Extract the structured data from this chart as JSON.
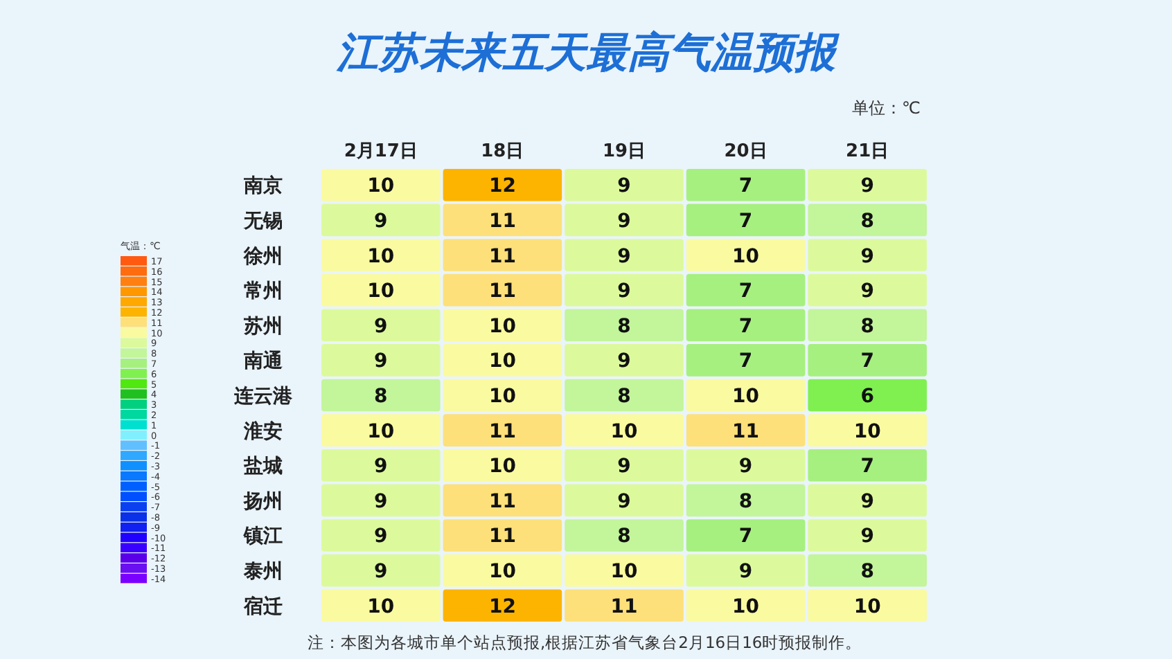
{
  "chart_data": {
    "type": "heatmap",
    "title": "江苏未来五天最高气温预报",
    "subtitle": "单位：℃",
    "clabel": "气温：℃",
    "annotations": [
      "注：本图为各城市单个站点预报,根据江苏省气象台2月16日16时预报制作。"
    ],
    "categories": [
      "2月17日",
      "18日",
      "19日",
      "20日",
      "21日"
    ],
    "y_categories": [
      "南京",
      "无锡",
      "徐州",
      "常州",
      "苏州",
      "南通",
      "连云港",
      "淮安",
      "盐城",
      "扬州",
      "镇江",
      "泰州",
      "宿迁"
    ],
    "cells": [
      [
        10,
        12,
        9,
        7,
        9
      ],
      [
        9,
        11,
        9,
        7,
        8
      ],
      [
        10,
        11,
        9,
        10,
        9
      ],
      [
        10,
        11,
        9,
        7,
        9
      ],
      [
        9,
        10,
        8,
        7,
        8
      ],
      [
        9,
        10,
        9,
        7,
        7
      ],
      [
        8,
        10,
        8,
        10,
        6
      ],
      [
        10,
        11,
        10,
        11,
        10
      ],
      [
        9,
        10,
        9,
        9,
        7
      ],
      [
        9,
        11,
        9,
        8,
        9
      ],
      [
        9,
        11,
        8,
        7,
        9
      ],
      [
        9,
        10,
        10,
        9,
        8
      ],
      [
        10,
        12,
        11,
        10,
        10
      ]
    ],
    "data_labels": true,
    "clim": [
      -14,
      17
    ],
    "cticks": [
      17,
      16,
      15,
      14,
      13,
      12,
      11,
      10,
      9,
      8,
      7,
      6,
      5,
      4,
      3,
      2,
      1,
      0,
      -1,
      -2,
      -3,
      -4,
      -5,
      -6,
      -7,
      -8,
      -9,
      -10,
      -11,
      -12,
      -13,
      -14
    ]
  }
}
